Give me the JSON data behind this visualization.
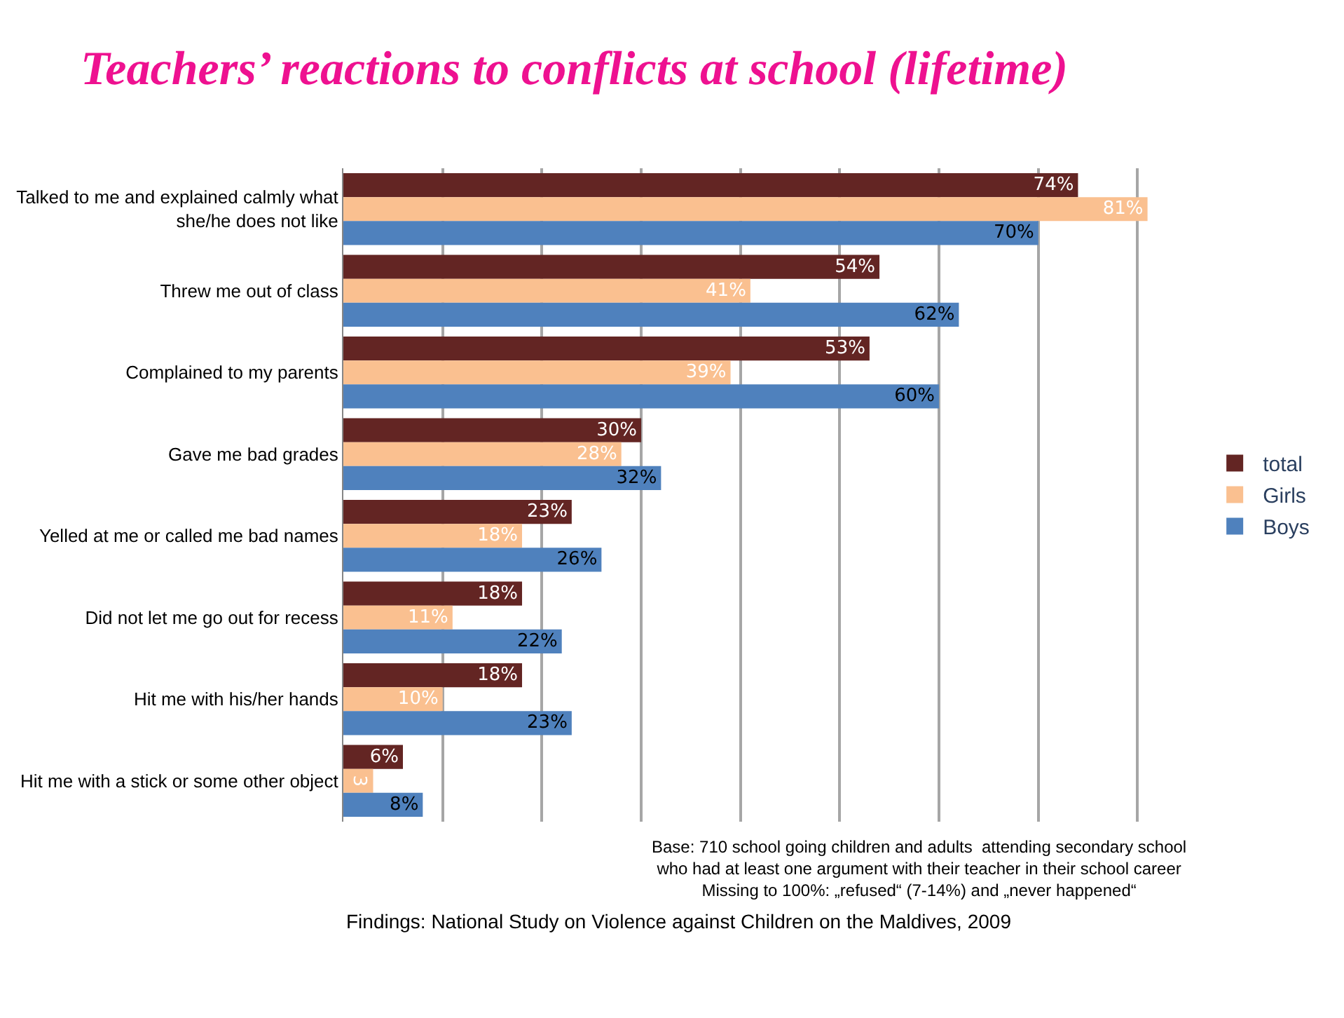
{
  "chart_data": {
    "type": "bar",
    "orientation": "horizontal",
    "title": "Teachers’ reactions to conflicts at school (lifetime)",
    "categories": [
      "Talked to me and explained calmly what she/he does not like",
      "Threw me out of class",
      "Complained to my parents",
      "Gave me bad grades",
      "Yelled at me or called me bad names",
      "Did not let me go out for recess",
      "Hit me with his/her hands",
      "Hit me with a stick or some other object"
    ],
    "series": [
      {
        "name": "total",
        "color": "#632523",
        "values": [
          74,
          54,
          53,
          30,
          23,
          18,
          18,
          6
        ],
        "value_labels": [
          "74%",
          "54%",
          "53%",
          "30%",
          "23%",
          "18%",
          "18%",
          "6%"
        ]
      },
      {
        "name": "Girls",
        "color": "#fac090",
        "values": [
          81,
          41,
          39,
          28,
          18,
          11,
          10,
          3
        ],
        "value_labels": [
          "81%",
          "41%",
          "39%",
          "28%",
          "18%",
          "11%",
          "10%",
          "3"
        ]
      },
      {
        "name": "Boys",
        "color": "#4f81bd",
        "values": [
          70,
          62,
          60,
          32,
          26,
          22,
          23,
          8
        ],
        "value_labels": [
          "70%",
          "62%",
          "60%",
          "32%",
          "26%",
          "22%",
          "23%",
          "8%"
        ]
      }
    ],
    "grid": "x",
    "tick_labels": "y",
    "legend": "right",
    "annotations": [
      "Base: 710 school going children and adults  attending secondary school who had at least one argument with their teacher in their school career Missing to 100%: „refused“ (7-14%) and „never happened“",
      "Findings: National Study on Violence against Children on the Maldives, 2009"
    ]
  }
}
